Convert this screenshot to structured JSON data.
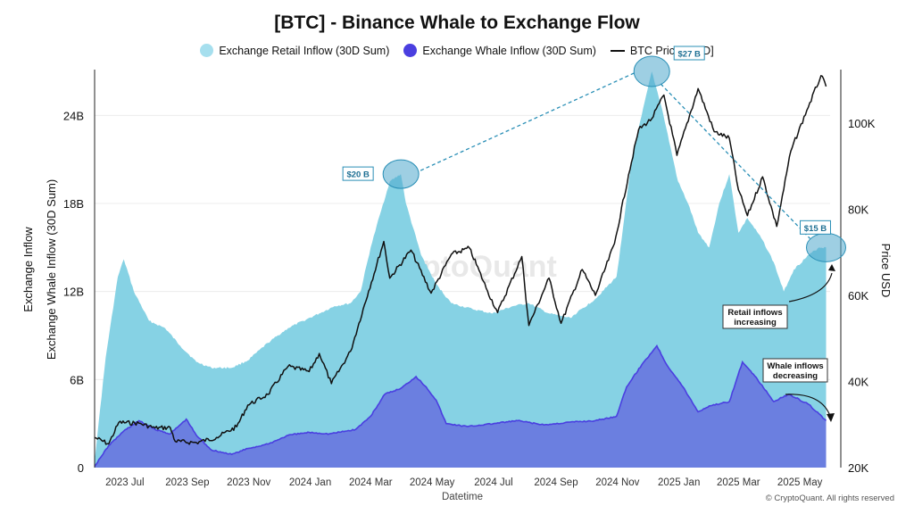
{
  "chart_data": {
    "type": "area",
    "title": "[BTC] - Binance Whale to Exchange Flow",
    "xlabel": "Datetime",
    "ylabel_left": [
      "Exchange Inflow",
      "Exchange Whale Inflow (30D Sum)"
    ],
    "ylabel_right": "Price USD",
    "legend": [
      {
        "name": "Exchange Retail Inflow (30D Sum)",
        "color": "#7fd0e6",
        "marker": "circle"
      },
      {
        "name": "Exchange Whale Inflow (30D Sum)",
        "color": "#4a3fe0",
        "marker": "circle"
      },
      {
        "name": "BTC Price [USD]",
        "color": "#111111",
        "marker": "line"
      }
    ],
    "ylim_left": [
      0,
      27
    ],
    "ylim_right": [
      20000,
      112000
    ],
    "left_ticks": [
      {
        "v": 0,
        "label": "0"
      },
      {
        "v": 6,
        "label": "6B"
      },
      {
        "v": 12,
        "label": "12B"
      },
      {
        "v": 18,
        "label": "18B"
      },
      {
        "v": 24,
        "label": "24B"
      }
    ],
    "right_ticks": [
      {
        "v": 20000,
        "label": "20K"
      },
      {
        "v": 40000,
        "label": "40K"
      },
      {
        "v": 60000,
        "label": "60K"
      },
      {
        "v": 80000,
        "label": "80K"
      },
      {
        "v": 100000,
        "label": "100K"
      }
    ],
    "x_range": [
      "2023-06-01",
      "2025-05-31"
    ],
    "x_ticks": [
      {
        "date": "2023-07-01",
        "label": "2023 Jul"
      },
      {
        "date": "2023-09-01",
        "label": "2023 Sep"
      },
      {
        "date": "2023-11-01",
        "label": "2023 Nov"
      },
      {
        "date": "2024-01-01",
        "label": "2024 Jan"
      },
      {
        "date": "2024-03-01",
        "label": "2024 Mar"
      },
      {
        "date": "2024-05-01",
        "label": "2024 May"
      },
      {
        "date": "2024-07-01",
        "label": "2024 Jul"
      },
      {
        "date": "2024-09-01",
        "label": "2024 Sep"
      },
      {
        "date": "2024-11-01",
        "label": "2024 Nov"
      },
      {
        "date": "2025-01-01",
        "label": "2025 Jan"
      },
      {
        "date": "2025-03-01",
        "label": "2025 Mar"
      },
      {
        "date": "2025-05-01",
        "label": "2025 May"
      }
    ],
    "grid": "horizontal",
    "series": [
      {
        "name": "Exchange Retail Inflow (30D Sum)",
        "unit": "B",
        "points": [
          [
            "2023-06-01",
            0.5
          ],
          [
            "2023-06-12",
            7.5
          ],
          [
            "2023-06-24",
            13
          ],
          [
            "2023-06-30",
            14.2
          ],
          [
            "2023-07-10",
            12
          ],
          [
            "2023-07-25",
            10
          ],
          [
            "2023-08-10",
            9.5
          ],
          [
            "2023-08-25",
            8.3
          ],
          [
            "2023-09-10",
            7.2
          ],
          [
            "2023-09-25",
            6.8
          ],
          [
            "2023-10-15",
            6.8
          ],
          [
            "2023-10-31",
            7.3
          ],
          [
            "2023-11-20",
            8.5
          ],
          [
            "2023-12-10",
            9.5
          ],
          [
            "2023-12-25",
            10
          ],
          [
            "2024-01-10",
            10.5
          ],
          [
            "2024-01-25",
            11
          ],
          [
            "2024-02-10",
            11.2
          ],
          [
            "2024-02-20",
            12
          ],
          [
            "2024-03-01",
            15
          ],
          [
            "2024-03-10",
            17.2
          ],
          [
            "2024-03-20",
            19.5
          ],
          [
            "2024-03-31",
            20
          ],
          [
            "2024-04-05",
            18
          ],
          [
            "2024-04-20",
            14.5
          ],
          [
            "2024-05-05",
            12.5
          ],
          [
            "2024-05-20",
            11.2
          ],
          [
            "2024-06-10",
            10.8
          ],
          [
            "2024-06-30",
            10.5
          ],
          [
            "2024-07-20",
            11
          ],
          [
            "2024-08-05",
            11.2
          ],
          [
            "2024-08-25",
            10.5
          ],
          [
            "2024-09-15",
            10.2
          ],
          [
            "2024-10-10",
            11.5
          ],
          [
            "2024-10-31",
            13
          ],
          [
            "2024-11-05",
            15.5
          ],
          [
            "2024-11-15",
            21
          ],
          [
            "2024-11-25",
            24
          ],
          [
            "2024-12-05",
            27
          ],
          [
            "2024-12-15",
            24.5
          ],
          [
            "2024-12-31",
            19.5
          ],
          [
            "2025-01-10",
            18
          ],
          [
            "2025-01-20",
            16
          ],
          [
            "2025-01-31",
            15
          ],
          [
            "2025-02-10",
            18
          ],
          [
            "2025-02-20",
            20
          ],
          [
            "2025-03-01",
            16
          ],
          [
            "2025-03-10",
            17
          ],
          [
            "2025-03-25",
            15.5
          ],
          [
            "2025-04-05",
            14
          ],
          [
            "2025-04-15",
            12
          ],
          [
            "2025-04-25",
            13.5
          ],
          [
            "2025-05-10",
            14.5
          ],
          [
            "2025-05-20",
            15
          ],
          [
            "2025-05-27",
            15
          ]
        ]
      },
      {
        "name": "Exchange Whale Inflow (30D Sum)",
        "unit": "B",
        "points": [
          [
            "2023-06-01",
            0.1
          ],
          [
            "2023-06-15",
            1.5
          ],
          [
            "2023-06-30",
            2.5
          ],
          [
            "2023-07-15",
            3.2
          ],
          [
            "2023-07-31",
            2.6
          ],
          [
            "2023-08-15",
            2.3
          ],
          [
            "2023-08-31",
            3.3
          ],
          [
            "2023-09-10",
            2.2
          ],
          [
            "2023-09-25",
            1.2
          ],
          [
            "2023-10-15",
            0.9
          ],
          [
            "2023-10-31",
            1.3
          ],
          [
            "2023-11-20",
            1.6
          ],
          [
            "2023-12-10",
            2.2
          ],
          [
            "2023-12-31",
            2.4
          ],
          [
            "2024-01-20",
            2.3
          ],
          [
            "2024-02-15",
            2.6
          ],
          [
            "2024-03-01",
            3.5
          ],
          [
            "2024-03-15",
            5
          ],
          [
            "2024-03-31",
            5.4
          ],
          [
            "2024-04-15",
            6.2
          ],
          [
            "2024-04-25",
            5.5
          ],
          [
            "2024-05-05",
            4.6
          ],
          [
            "2024-05-15",
            3
          ],
          [
            "2024-06-05",
            2.8
          ],
          [
            "2024-07-01",
            3
          ],
          [
            "2024-07-25",
            3.2
          ],
          [
            "2024-08-20",
            2.9
          ],
          [
            "2024-09-15",
            3.1
          ],
          [
            "2024-10-10",
            3.2
          ],
          [
            "2024-10-31",
            3.5
          ],
          [
            "2024-11-10",
            5.5
          ],
          [
            "2024-11-25",
            7
          ],
          [
            "2024-12-10",
            8.3
          ],
          [
            "2024-12-20",
            7
          ],
          [
            "2025-01-05",
            5.5
          ],
          [
            "2025-01-20",
            3.8
          ],
          [
            "2025-01-31",
            4.2
          ],
          [
            "2025-02-20",
            4.5
          ],
          [
            "2025-03-05",
            7.2
          ],
          [
            "2025-03-20",
            6
          ],
          [
            "2025-04-05",
            4.5
          ],
          [
            "2025-04-20",
            5
          ],
          [
            "2025-05-10",
            4.3
          ],
          [
            "2025-05-27",
            3.2
          ]
        ]
      },
      {
        "name": "BTC Price [USD]",
        "unit": "USD",
        "points": [
          [
            "2023-06-01",
            27000
          ],
          [
            "2023-06-15",
            25500
          ],
          [
            "2023-06-25",
            30500
          ],
          [
            "2023-07-15",
            30300
          ],
          [
            "2023-07-31",
            29200
          ],
          [
            "2023-08-15",
            29300
          ],
          [
            "2023-08-20",
            26100
          ],
          [
            "2023-09-10",
            25800
          ],
          [
            "2023-09-30",
            27000
          ],
          [
            "2023-10-20",
            29500
          ],
          [
            "2023-10-31",
            34500
          ],
          [
            "2023-11-20",
            37000
          ],
          [
            "2023-12-10",
            43500
          ],
          [
            "2023-12-31",
            42300
          ],
          [
            "2024-01-10",
            46500
          ],
          [
            "2024-01-22",
            39500
          ],
          [
            "2024-02-10",
            47000
          ],
          [
            "2024-02-28",
            61000
          ],
          [
            "2024-03-14",
            72500
          ],
          [
            "2024-03-20",
            64000
          ],
          [
            "2024-04-10",
            70500
          ],
          [
            "2024-04-30",
            60500
          ],
          [
            "2024-05-20",
            69500
          ],
          [
            "2024-06-07",
            71000
          ],
          [
            "2024-06-25",
            61000
          ],
          [
            "2024-07-05",
            56000
          ],
          [
            "2024-07-29",
            69000
          ],
          [
            "2024-08-05",
            53000
          ],
          [
            "2024-08-25",
            64000
          ],
          [
            "2024-09-06",
            53500
          ],
          [
            "2024-09-27",
            66000
          ],
          [
            "2024-10-10",
            60000
          ],
          [
            "2024-10-29",
            72000
          ],
          [
            "2024-11-12",
            88000
          ],
          [
            "2024-11-22",
            98500
          ],
          [
            "2024-12-05",
            101000
          ],
          [
            "2024-12-17",
            106500
          ],
          [
            "2024-12-30",
            92500
          ],
          [
            "2025-01-20",
            108000
          ],
          [
            "2025-02-05",
            98000
          ],
          [
            "2025-02-20",
            96500
          ],
          [
            "2025-03-01",
            84500
          ],
          [
            "2025-03-10",
            78500
          ],
          [
            "2025-03-25",
            87500
          ],
          [
            "2025-04-08",
            76000
          ],
          [
            "2025-04-22",
            93500
          ],
          [
            "2025-05-08",
            103000
          ],
          [
            "2025-05-22",
            111000
          ],
          [
            "2025-05-27",
            108500
          ]
        ]
      }
    ],
    "annotations": {
      "callouts": [
        {
          "label": "$20 B",
          "date": "2024-03-31",
          "value": 20
        },
        {
          "label": "$27 B",
          "date": "2024-12-05",
          "value": 27
        },
        {
          "label": "$15 B",
          "date": "2025-05-27",
          "value": 15
        }
      ],
      "notes": [
        {
          "text": [
            "Retail inflows",
            "increasing"
          ]
        },
        {
          "text": [
            "Whale inflows",
            "decreasing"
          ]
        }
      ]
    },
    "watermark": "CryptoQuant",
    "footer": "© CryptoQuant. All rights reserved"
  }
}
